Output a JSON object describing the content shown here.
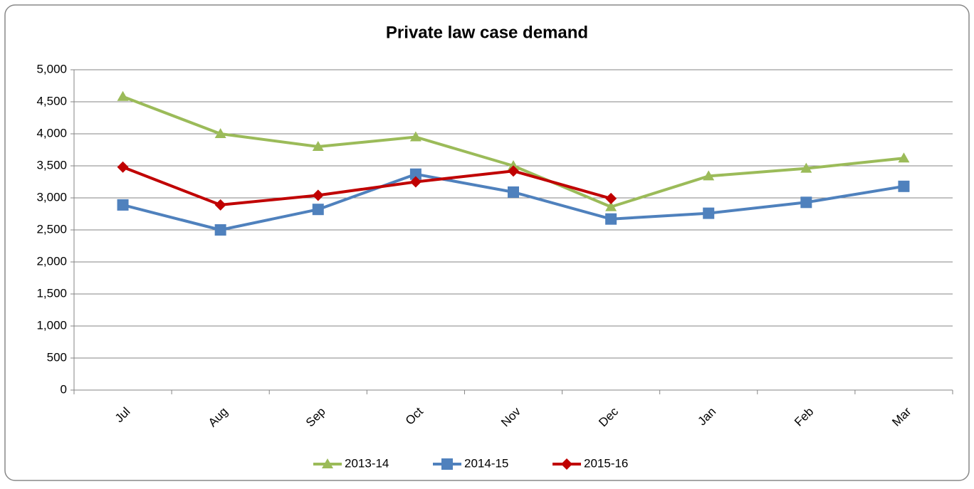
{
  "chart_data": {
    "type": "line",
    "title": "Private law case demand",
    "categories": [
      "Jul",
      "Aug",
      "Sep",
      "Oct",
      "Nov",
      "Dec",
      "Jan",
      "Feb",
      "Mar"
    ],
    "series": [
      {
        "name": "2013-14",
        "color": "#9bbb59",
        "marker": "triangle",
        "values": [
          4580,
          4000,
          3800,
          3950,
          3500,
          2860,
          3340,
          3460,
          3620
        ]
      },
      {
        "name": "2014-15",
        "color": "#4f81bd",
        "marker": "square",
        "values": [
          2890,
          2500,
          2820,
          3370,
          3090,
          2670,
          2760,
          2930,
          3180
        ]
      },
      {
        "name": "2015-16",
        "color": "#c00000",
        "marker": "diamond",
        "values": [
          3480,
          2890,
          3040,
          3250,
          3420,
          2990,
          null,
          null,
          null
        ]
      }
    ],
    "ylim": [
      0,
      5000
    ],
    "yticks": [
      0,
      500,
      {
        "value": 1000,
        "label": "1,000"
      },
      {
        "value": 1500,
        "label": "1,500"
      },
      {
        "value": 2000,
        "label": "2,000"
      },
      {
        "value": 2500,
        "label": "2,500"
      },
      {
        "value": 3000,
        "label": "3,000"
      },
      {
        "value": 3500,
        "label": "3,500"
      },
      {
        "value": 4000,
        "label": "4,000"
      },
      {
        "value": 4500,
        "label": "4,500"
      },
      {
        "value": 5000,
        "label": "5,000"
      }
    ],
    "grid": true,
    "legend": "bottom"
  }
}
